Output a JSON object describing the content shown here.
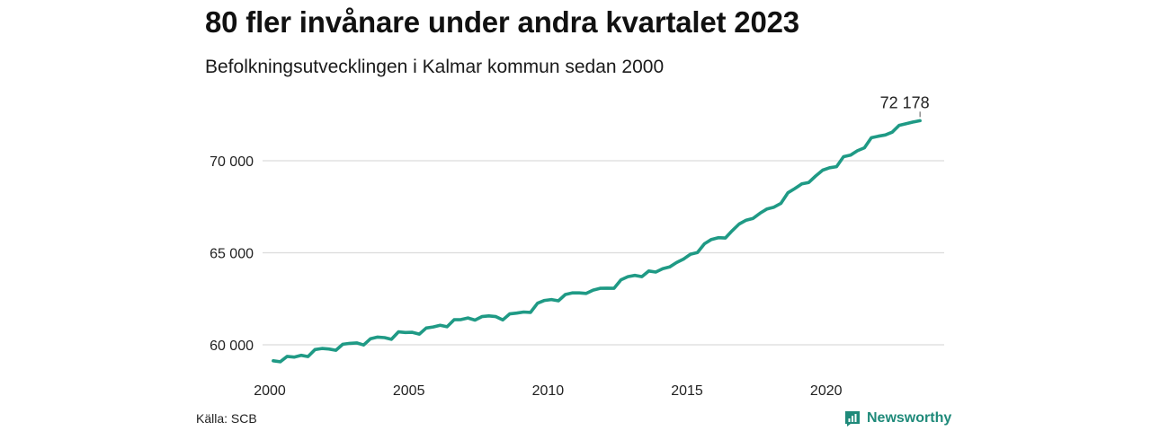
{
  "header": {
    "title": "80 fler invånare under andra kvartalet 2023",
    "subtitle": "Befolkningsutvecklingen i Kalmar kommun sedan 2000"
  },
  "footer": {
    "source": "Källa: SCB",
    "brand": "Newsworthy",
    "brand_icon": "newsworthy-logo-icon"
  },
  "colors": {
    "line": "#1f9a85",
    "grid": "#dcdcdc",
    "brand": "#1f8a7a"
  },
  "chart_data": {
    "type": "line",
    "title": "80 fler invånare under andra kvartalet 2023",
    "subtitle": "Befolkningsutvecklingen i Kalmar kommun sedan 2000",
    "frequency": "quarterly",
    "xlabel": "",
    "ylabel": "",
    "xlim": [
      2000,
      2023.5
    ],
    "ylim": [
      58500,
      73000
    ],
    "grid": true,
    "x_ticks": [
      2000,
      2005,
      2010,
      2015,
      2020
    ],
    "x_tick_labels": [
      "2000",
      "2005",
      "2010",
      "2015",
      "2020"
    ],
    "y_ticks": [
      60000,
      65000,
      70000
    ],
    "y_tick_labels": [
      "60 000",
      "65 000",
      "70 000"
    ],
    "end_label": "72 178",
    "series": [
      {
        "x": [
          "2000-Q1",
          "2000-Q2",
          "2000-Q3",
          "2000-Q4",
          "2001-Q1",
          "2001-Q2",
          "2001-Q3",
          "2001-Q4",
          "2002-Q1",
          "2002-Q2",
          "2002-Q3",
          "2002-Q4",
          "2003-Q1",
          "2003-Q2",
          "2003-Q3",
          "2003-Q4",
          "2004-Q1",
          "2004-Q2",
          "2004-Q3",
          "2004-Q4",
          "2005-Q1",
          "2005-Q2",
          "2005-Q3",
          "2005-Q4",
          "2006-Q1",
          "2006-Q2",
          "2006-Q3",
          "2006-Q4",
          "2007-Q1",
          "2007-Q2",
          "2007-Q3",
          "2007-Q4",
          "2008-Q1",
          "2008-Q2",
          "2008-Q3",
          "2008-Q4",
          "2009-Q1",
          "2009-Q2",
          "2009-Q3",
          "2009-Q4",
          "2010-Q1",
          "2010-Q2",
          "2010-Q3",
          "2010-Q4",
          "2011-Q1",
          "2011-Q2",
          "2011-Q3",
          "2011-Q4",
          "2012-Q1",
          "2012-Q2",
          "2012-Q3",
          "2012-Q4",
          "2013-Q1",
          "2013-Q2",
          "2013-Q3",
          "2013-Q4",
          "2014-Q1",
          "2014-Q2",
          "2014-Q3",
          "2014-Q4",
          "2015-Q1",
          "2015-Q2",
          "2015-Q3",
          "2015-Q4",
          "2016-Q1",
          "2016-Q2",
          "2016-Q3",
          "2016-Q4",
          "2017-Q1",
          "2017-Q2",
          "2017-Q3",
          "2017-Q4",
          "2018-Q1",
          "2018-Q2",
          "2018-Q3",
          "2018-Q4",
          "2019-Q1",
          "2019-Q2",
          "2019-Q3",
          "2019-Q4",
          "2020-Q1",
          "2020-Q2",
          "2020-Q3",
          "2020-Q4",
          "2021-Q1",
          "2021-Q2",
          "2021-Q3",
          "2021-Q4",
          "2022-Q1",
          "2022-Q2",
          "2022-Q3",
          "2022-Q4",
          "2023-Q1",
          "2023-Q2"
        ],
        "values": [
          59130,
          59080,
          59370,
          59330,
          59430,
          59360,
          59740,
          59800,
          59770,
          59700,
          60030,
          60080,
          60100,
          59990,
          60330,
          60420,
          60390,
          60300,
          60700,
          60670,
          60680,
          60580,
          60910,
          60970,
          61060,
          60980,
          61360,
          61370,
          61460,
          61340,
          61530,
          61570,
          61530,
          61350,
          61680,
          61720,
          61780,
          61760,
          62260,
          62410,
          62460,
          62390,
          62730,
          62820,
          62820,
          62790,
          62970,
          63070,
          63080,
          63070,
          63530,
          63700,
          63770,
          63700,
          64010,
          63950,
          64130,
          64230,
          64470,
          64660,
          64920,
          65010,
          65490,
          65720,
          65820,
          65800,
          66200,
          66560,
          66770,
          66870,
          67150,
          67380,
          67480,
          67690,
          68260,
          68490,
          68740,
          68820,
          69170,
          69490,
          69620,
          69680,
          70220,
          70300,
          70540,
          70700,
          71250,
          71330,
          71400,
          71550,
          71920,
          72010,
          72100,
          72178
        ]
      }
    ]
  }
}
